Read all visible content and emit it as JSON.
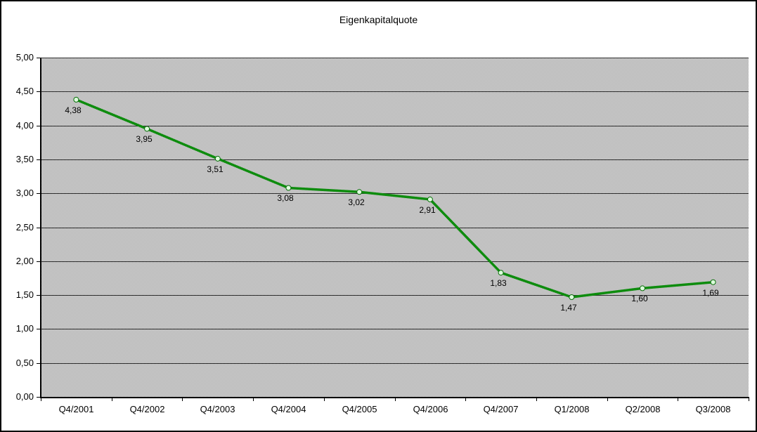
{
  "window": {
    "title": "Eigenkapitalquote"
  },
  "chart_data": {
    "type": "line",
    "title": "Eigenkapitalquote",
    "categories": [
      "Q4/2001",
      "Q4/2002",
      "Q4/2003",
      "Q4/2004",
      "Q4/2005",
      "Q4/2006",
      "Q4/2007",
      "Q1/2008",
      "Q2/2008",
      "Q3/2008"
    ],
    "values": [
      4.38,
      3.95,
      3.51,
      3.08,
      3.02,
      2.91,
      1.83,
      1.47,
      1.6,
      1.69
    ],
    "point_labels": [
      "4,38",
      "3,95",
      "3,51",
      "3,08",
      "3,02",
      "2,91",
      "1,83",
      "1,47",
      "1,60",
      "1,69"
    ],
    "xlabel": "",
    "ylabel": "",
    "ylim": [
      0,
      5
    ],
    "y_tick_step": 0.5,
    "y_tick_values": [
      0,
      0.5,
      1,
      1.5,
      2,
      2.5,
      3,
      3.5,
      4,
      4.5,
      5
    ],
    "y_tick_labels": [
      "0,00",
      "0,50",
      "1,00",
      "1,50",
      "2,00",
      "2,50",
      "3,00",
      "3,50",
      "4,00",
      "4,50",
      "5,00"
    ],
    "grid": "horizontal",
    "legend_position": "none",
    "decimal_separator": ",",
    "colors": {
      "series_line": "#0e8c0e",
      "marker_fill": "#dcffdc",
      "marker_stroke": "#0a6e0a",
      "plot_background_base": "#d8d8d8",
      "plot_background_dot": "#ababab",
      "gridline": "#2e2e2e",
      "axis": "#000000",
      "text": "#000000",
      "frame_background": "#ffffff",
      "frame_border": "#000000"
    }
  }
}
